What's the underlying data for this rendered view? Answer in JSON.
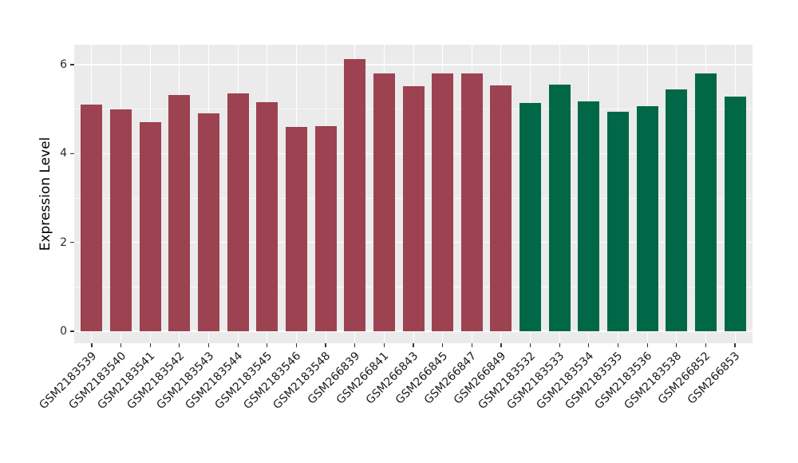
{
  "chart_data": {
    "type": "bar",
    "title": "",
    "xlabel": "",
    "ylabel": "Expression Level",
    "ylim": [
      -0.27,
      6.44
    ],
    "yticks": [
      0,
      2,
      4,
      6
    ],
    "yticks_minor": [
      1,
      3,
      5
    ],
    "grid": true,
    "legend_position": "none",
    "panel_background": "#EBEBEB",
    "gridline_color": "#ffffff",
    "group_colors": {
      "group1": "#9C4251",
      "group2": "#016847"
    },
    "categories": [
      "GSM2183539",
      "GSM2183540",
      "GSM2183541",
      "GSM2183542",
      "GSM2183543",
      "GSM2183544",
      "GSM2183545",
      "GSM2183546",
      "GSM2183548",
      "GSM266839",
      "GSM266841",
      "GSM266843",
      "GSM266845",
      "GSM266847",
      "GSM266849",
      "GSM2183532",
      "GSM2183533",
      "GSM2183534",
      "GSM2183535",
      "GSM2183536",
      "GSM2183538",
      "GSM266852",
      "GSM266853"
    ],
    "series": [
      {
        "name": "Expression Level",
        "values": [
          5.1,
          4.99,
          4.71,
          5.32,
          4.91,
          5.36,
          5.16,
          4.59,
          4.62,
          6.13,
          5.81,
          5.52,
          5.81,
          5.81,
          5.54,
          5.14,
          5.55,
          5.17,
          4.94,
          5.07,
          5.44,
          5.8,
          5.29
        ],
        "groups": [
          "group1",
          "group1",
          "group1",
          "group1",
          "group1",
          "group1",
          "group1",
          "group1",
          "group1",
          "group1",
          "group1",
          "group1",
          "group1",
          "group1",
          "group1",
          "group2",
          "group2",
          "group2",
          "group2",
          "group2",
          "group2",
          "group2",
          "group2"
        ]
      }
    ]
  }
}
